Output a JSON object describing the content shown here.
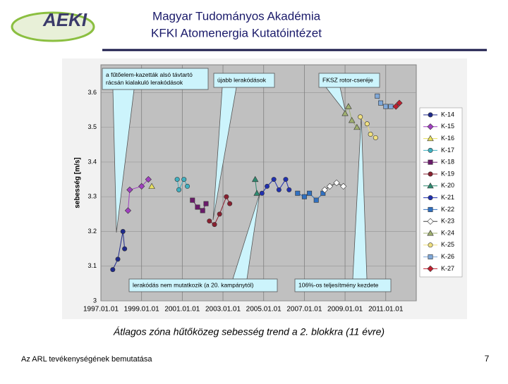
{
  "header": {
    "logo": "AEKI",
    "title_lines": [
      "Magyar Tudományos Akadémia",
      "KFKI Atomenergia Kutatóintézet"
    ]
  },
  "caption": "Átlagos zóna hűtőközeg sebesség trend a 2. blokkra (11 évre)",
  "footer": {
    "text": "Az ARL tevékenységének bemutatása",
    "page": "7"
  },
  "chart_data": {
    "type": "scatter",
    "y_label": "sebesség [m/s]",
    "xlim": [
      "1997.01.01",
      "2012.07.01"
    ],
    "xticks": [
      "1997.01.01",
      "1999.01.01",
      "2001.01.01",
      "2003.01.01",
      "2005.01.01",
      "2007.01.01",
      "2009.01.01",
      "2011.01.01"
    ],
    "ylim": [
      3,
      3.68
    ],
    "yticks": [
      3,
      3.1,
      3.2,
      3.3,
      3.4,
      3.5,
      3.6
    ],
    "grid": true,
    "legend": "right",
    "annotations": [
      {
        "lines": [
          "a fűtőelem-kazetták alsó távtartó",
          "rácsán kialakuló lerakódások"
        ]
      },
      {
        "lines": [
          "újabb lerakódások"
        ]
      },
      {
        "lines": [
          "FKSZ rotor-cseréje"
        ]
      },
      {
        "lines": [
          "lerakódás nem mutatkozik (a 20. kampánytól)"
        ]
      },
      {
        "lines": [
          "106%-os teljesítmény kezdete"
        ]
      }
    ],
    "series": [
      {
        "name": "K-14",
        "color": "#1f2a8c",
        "marker": "circle",
        "x": [
          "1997.08.01",
          "1997.11.01",
          "1998.02.01",
          "1998.03.01"
        ],
        "values": [
          3.09,
          3.12,
          3.2,
          3.15
        ]
      },
      {
        "name": "K-15",
        "color": "#a040c0",
        "marker": "diamond",
        "x": [
          "1998.05.01",
          "1998.06.01",
          "1999.01.01",
          "1999.05.01"
        ],
        "values": [
          3.26,
          3.32,
          3.33,
          3.35
        ]
      },
      {
        "name": "K-16",
        "color": "#e8e060",
        "marker": "triangle",
        "x": [
          "1999.07.01"
        ],
        "values": [
          3.33
        ]
      },
      {
        "name": "K-17",
        "color": "#40b0c0",
        "marker": "circle",
        "x": [
          "2000.10.01",
          "2000.11.01",
          "2001.02.01",
          "2001.04.01"
        ],
        "values": [
          3.35,
          3.32,
          3.35,
          3.33
        ]
      },
      {
        "name": "K-18",
        "color": "#6a1a6a",
        "marker": "square",
        "x": [
          "2001.07.01",
          "2001.10.01",
          "2002.01.01",
          "2002.03.01"
        ],
        "values": [
          3.29,
          3.27,
          3.26,
          3.28
        ]
      },
      {
        "name": "K-19",
        "color": "#8a2030",
        "marker": "circle",
        "x": [
          "2002.05.01",
          "2002.08.01",
          "2002.11.01",
          "2003.03.01",
          "2003.05.01"
        ],
        "values": [
          3.23,
          3.22,
          3.25,
          3.3,
          3.28
        ]
      },
      {
        "name": "K-20",
        "color": "#2f8a70",
        "marker": "triangle",
        "x": [
          "2004.08.01",
          "2004.09.01"
        ],
        "values": [
          3.35,
          3.31
        ]
      },
      {
        "name": "K-21",
        "color": "#2030b0",
        "marker": "circle",
        "x": [
          "2004.12.01",
          "2005.03.01",
          "2005.07.01",
          "2005.10.01",
          "2006.02.01",
          "2006.04.01"
        ],
        "values": [
          3.31,
          3.33,
          3.35,
          3.32,
          3.35,
          3.32
        ]
      },
      {
        "name": "K-22",
        "color": "#3070c0",
        "marker": "square",
        "x": [
          "2006.09.01",
          "2007.01.01",
          "2007.04.01",
          "2007.08.01",
          "2007.12.01"
        ],
        "values": [
          3.31,
          3.3,
          3.31,
          3.29,
          3.31
        ]
      },
      {
        "name": "K-23",
        "color": "#ffffff",
        "marker": "diamond",
        "x": [
          "2008.01.01",
          "2008.04.01",
          "2008.08.01",
          "2008.12.01"
        ],
        "values": [
          3.32,
          3.33,
          3.34,
          3.33
        ]
      },
      {
        "name": "K-24",
        "color": "#a0b070",
        "marker": "triangle",
        "x": [
          "2009.01.01",
          "2009.03.01",
          "2009.05.01",
          "2009.08.01"
        ],
        "values": [
          3.54,
          3.56,
          3.52,
          3.5
        ]
      },
      {
        "name": "K-25",
        "color": "#f0e080",
        "marker": "circle",
        "x": [
          "2009.10.01",
          "2010.02.01",
          "2010.04.01",
          "2010.07.01"
        ],
        "values": [
          3.53,
          3.51,
          3.48,
          3.47
        ]
      },
      {
        "name": "K-26",
        "color": "#80a8d8",
        "marker": "square",
        "x": [
          "2010.08.01",
          "2010.10.01",
          "2011.01.01",
          "2011.04.01"
        ],
        "values": [
          3.59,
          3.57,
          3.56,
          3.56
        ]
      },
      {
        "name": "K-27",
        "color": "#c02030",
        "marker": "diamond",
        "x": [
          "2011.07.01",
          "2011.09.01"
        ],
        "values": [
          3.56,
          3.57
        ]
      }
    ]
  }
}
